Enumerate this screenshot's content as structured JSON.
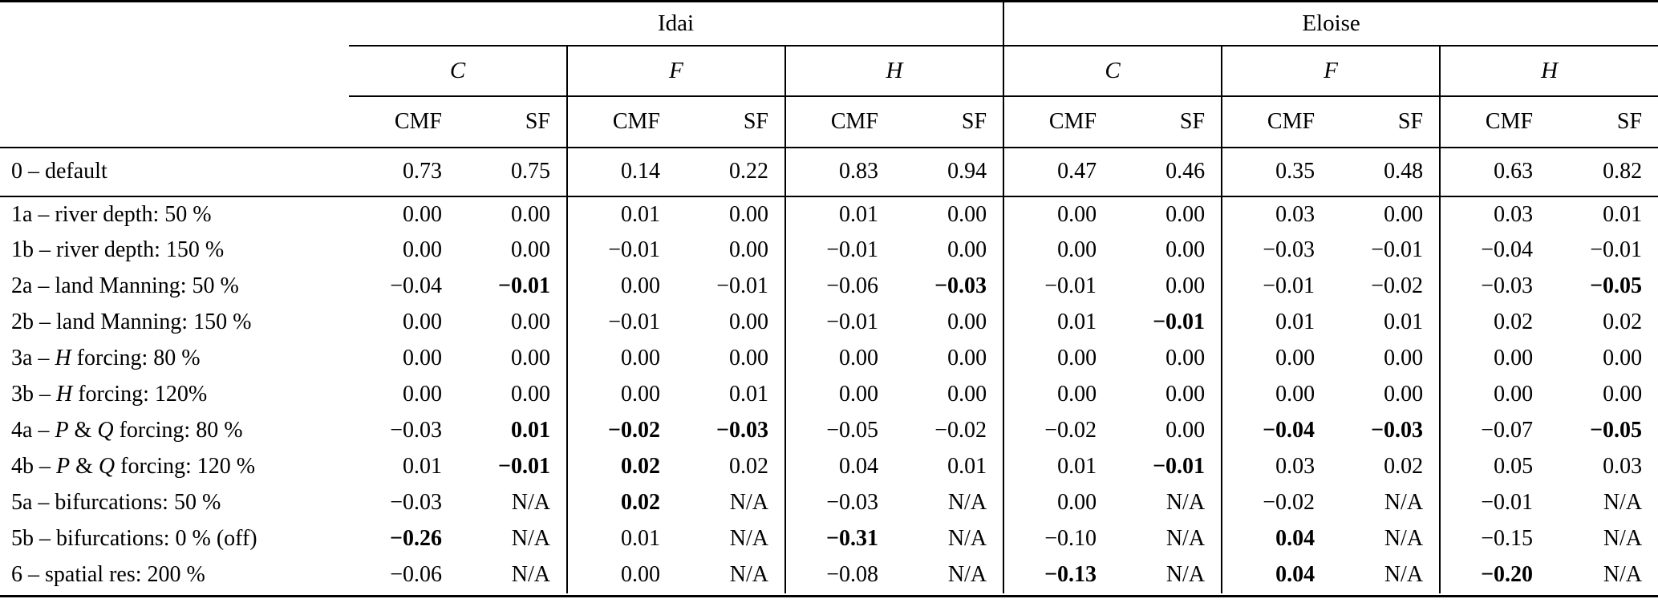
{
  "page": {
    "background": "#ffffff",
    "text_color": "#000000",
    "rule_color": "#000000"
  },
  "table": {
    "group_headers": [
      {
        "label": "Idai",
        "span": 6
      },
      {
        "label": "Eloise",
        "span": 6
      }
    ],
    "variable_headers": [
      {
        "label": "C"
      },
      {
        "label": "F"
      },
      {
        "label": "H"
      },
      {
        "label": "C"
      },
      {
        "label": "F"
      },
      {
        "label": "H"
      }
    ],
    "metric_headers": [
      "CMF",
      "SF",
      "CMF",
      "SF",
      "CMF",
      "SF",
      "CMF",
      "SF",
      "CMF",
      "SF",
      "CMF",
      "SF"
    ],
    "default_row": {
      "label": [
        {
          "t": "0 – default"
        }
      ],
      "values": [
        {
          "v": "0.73",
          "b": 0
        },
        {
          "v": "0.75",
          "b": 0
        },
        {
          "v": "0.14",
          "b": 0
        },
        {
          "v": "0.22",
          "b": 0
        },
        {
          "v": "0.83",
          "b": 0
        },
        {
          "v": "0.94",
          "b": 0
        },
        {
          "v": "0.47",
          "b": 0
        },
        {
          "v": "0.46",
          "b": 0
        },
        {
          "v": "0.35",
          "b": 0
        },
        {
          "v": "0.48",
          "b": 0
        },
        {
          "v": "0.63",
          "b": 0
        },
        {
          "v": "0.82",
          "b": 0
        }
      ]
    },
    "body_rows": [
      {
        "label": [
          {
            "t": "1a – river depth: 50 %"
          }
        ],
        "values": [
          {
            "v": "0.00",
            "b": 0
          },
          {
            "v": "0.00",
            "b": 0
          },
          {
            "v": "0.01",
            "b": 0
          },
          {
            "v": "0.00",
            "b": 0
          },
          {
            "v": "0.01",
            "b": 0
          },
          {
            "v": "0.00",
            "b": 0
          },
          {
            "v": "0.00",
            "b": 0
          },
          {
            "v": "0.00",
            "b": 0
          },
          {
            "v": "0.03",
            "b": 0
          },
          {
            "v": "0.00",
            "b": 0
          },
          {
            "v": "0.03",
            "b": 0
          },
          {
            "v": "0.01",
            "b": 0
          }
        ]
      },
      {
        "label": [
          {
            "t": "1b – river depth: 150 %"
          }
        ],
        "values": [
          {
            "v": "0.00",
            "b": 0
          },
          {
            "v": "0.00",
            "b": 0
          },
          {
            "v": "−0.01",
            "b": 0
          },
          {
            "v": "0.00",
            "b": 0
          },
          {
            "v": "−0.01",
            "b": 0
          },
          {
            "v": "0.00",
            "b": 0
          },
          {
            "v": "0.00",
            "b": 0
          },
          {
            "v": "0.00",
            "b": 0
          },
          {
            "v": "−0.03",
            "b": 0
          },
          {
            "v": "−0.01",
            "b": 0
          },
          {
            "v": "−0.04",
            "b": 0
          },
          {
            "v": "−0.01",
            "b": 0
          }
        ]
      },
      {
        "label": [
          {
            "t": "2a – land Manning: 50 %"
          }
        ],
        "values": [
          {
            "v": "−0.04",
            "b": 0
          },
          {
            "v": "−0.01",
            "b": 1
          },
          {
            "v": "0.00",
            "b": 0
          },
          {
            "v": "−0.01",
            "b": 0
          },
          {
            "v": "−0.06",
            "b": 0
          },
          {
            "v": "−0.03",
            "b": 1
          },
          {
            "v": "−0.01",
            "b": 0
          },
          {
            "v": "0.00",
            "b": 0
          },
          {
            "v": "−0.01",
            "b": 0
          },
          {
            "v": "−0.02",
            "b": 0
          },
          {
            "v": "−0.03",
            "b": 0
          },
          {
            "v": "−0.05",
            "b": 1
          }
        ]
      },
      {
        "label": [
          {
            "t": "2b – land Manning: 150 %"
          }
        ],
        "values": [
          {
            "v": "0.00",
            "b": 0
          },
          {
            "v": "0.00",
            "b": 0
          },
          {
            "v": "−0.01",
            "b": 0
          },
          {
            "v": "0.00",
            "b": 0
          },
          {
            "v": "−0.01",
            "b": 0
          },
          {
            "v": "0.00",
            "b": 0
          },
          {
            "v": "0.01",
            "b": 0
          },
          {
            "v": "−0.01",
            "b": 1
          },
          {
            "v": "0.01",
            "b": 0
          },
          {
            "v": "0.01",
            "b": 0
          },
          {
            "v": "0.02",
            "b": 0
          },
          {
            "v": "0.02",
            "b": 0
          }
        ]
      },
      {
        "label": [
          {
            "t": "3a – "
          },
          {
            "t": "H",
            "i": 1
          },
          {
            "t": " forcing: 80 %"
          }
        ],
        "values": [
          {
            "v": "0.00",
            "b": 0
          },
          {
            "v": "0.00",
            "b": 0
          },
          {
            "v": "0.00",
            "b": 0
          },
          {
            "v": "0.00",
            "b": 0
          },
          {
            "v": "0.00",
            "b": 0
          },
          {
            "v": "0.00",
            "b": 0
          },
          {
            "v": "0.00",
            "b": 0
          },
          {
            "v": "0.00",
            "b": 0
          },
          {
            "v": "0.00",
            "b": 0
          },
          {
            "v": "0.00",
            "b": 0
          },
          {
            "v": "0.00",
            "b": 0
          },
          {
            "v": "0.00",
            "b": 0
          }
        ]
      },
      {
        "label": [
          {
            "t": "3b – "
          },
          {
            "t": "H",
            "i": 1
          },
          {
            "t": " forcing: 120%"
          }
        ],
        "values": [
          {
            "v": "0.00",
            "b": 0
          },
          {
            "v": "0.00",
            "b": 0
          },
          {
            "v": "0.00",
            "b": 0
          },
          {
            "v": "0.01",
            "b": 0
          },
          {
            "v": "0.00",
            "b": 0
          },
          {
            "v": "0.00",
            "b": 0
          },
          {
            "v": "0.00",
            "b": 0
          },
          {
            "v": "0.00",
            "b": 0
          },
          {
            "v": "0.00",
            "b": 0
          },
          {
            "v": "0.00",
            "b": 0
          },
          {
            "v": "0.00",
            "b": 0
          },
          {
            "v": "0.00",
            "b": 0
          }
        ]
      },
      {
        "label": [
          {
            "t": "4a – "
          },
          {
            "t": "P",
            "i": 1
          },
          {
            "t": " & "
          },
          {
            "t": "Q",
            "i": 1
          },
          {
            "t": " forcing: 80 %"
          }
        ],
        "values": [
          {
            "v": "−0.03",
            "b": 0
          },
          {
            "v": "0.01",
            "b": 1
          },
          {
            "v": "−0.02",
            "b": 1
          },
          {
            "v": "−0.03",
            "b": 1
          },
          {
            "v": "−0.05",
            "b": 0
          },
          {
            "v": "−0.02",
            "b": 0
          },
          {
            "v": "−0.02",
            "b": 0
          },
          {
            "v": "0.00",
            "b": 0
          },
          {
            "v": "−0.04",
            "b": 1
          },
          {
            "v": "−0.03",
            "b": 1
          },
          {
            "v": "−0.07",
            "b": 0
          },
          {
            "v": "−0.05",
            "b": 1
          }
        ]
      },
      {
        "label": [
          {
            "t": "4b – "
          },
          {
            "t": "P",
            "i": 1
          },
          {
            "t": " & "
          },
          {
            "t": "Q",
            "i": 1
          },
          {
            "t": " forcing: 120 %"
          }
        ],
        "values": [
          {
            "v": "0.01",
            "b": 0
          },
          {
            "v": "−0.01",
            "b": 1
          },
          {
            "v": "0.02",
            "b": 1
          },
          {
            "v": "0.02",
            "b": 0
          },
          {
            "v": "0.04",
            "b": 0
          },
          {
            "v": "0.01",
            "b": 0
          },
          {
            "v": "0.01",
            "b": 0
          },
          {
            "v": "−0.01",
            "b": 1
          },
          {
            "v": "0.03",
            "b": 0
          },
          {
            "v": "0.02",
            "b": 0
          },
          {
            "v": "0.05",
            "b": 0
          },
          {
            "v": "0.03",
            "b": 0
          }
        ]
      },
      {
        "label": [
          {
            "t": "5a – bifurcations: 50 %"
          }
        ],
        "values": [
          {
            "v": "−0.03",
            "b": 0
          },
          {
            "v": "N/A",
            "b": 0
          },
          {
            "v": "0.02",
            "b": 1
          },
          {
            "v": "N/A",
            "b": 0
          },
          {
            "v": "−0.03",
            "b": 0
          },
          {
            "v": "N/A",
            "b": 0
          },
          {
            "v": "0.00",
            "b": 0
          },
          {
            "v": "N/A",
            "b": 0
          },
          {
            "v": "−0.02",
            "b": 0
          },
          {
            "v": "N/A",
            "b": 0
          },
          {
            "v": "−0.01",
            "b": 0
          },
          {
            "v": "N/A",
            "b": 0
          }
        ]
      },
      {
        "label": [
          {
            "t": "5b – bifurcations: 0 % (off)"
          }
        ],
        "values": [
          {
            "v": "−0.26",
            "b": 1
          },
          {
            "v": "N/A",
            "b": 0
          },
          {
            "v": "0.01",
            "b": 0
          },
          {
            "v": "N/A",
            "b": 0
          },
          {
            "v": "−0.31",
            "b": 1
          },
          {
            "v": "N/A",
            "b": 0
          },
          {
            "v": "−0.10",
            "b": 0
          },
          {
            "v": "N/A",
            "b": 0
          },
          {
            "v": "0.04",
            "b": 1
          },
          {
            "v": "N/A",
            "b": 0
          },
          {
            "v": "−0.15",
            "b": 0
          },
          {
            "v": "N/A",
            "b": 0
          }
        ]
      },
      {
        "label": [
          {
            "t": "6 – spatial res: 200 %"
          }
        ],
        "values": [
          {
            "v": "−0.06",
            "b": 0
          },
          {
            "v": "N/A",
            "b": 0
          },
          {
            "v": "0.00",
            "b": 0
          },
          {
            "v": "N/A",
            "b": 0
          },
          {
            "v": "−0.08",
            "b": 0
          },
          {
            "v": "N/A",
            "b": 0
          },
          {
            "v": "−0.13",
            "b": 1
          },
          {
            "v": "N/A",
            "b": 0
          },
          {
            "v": "0.04",
            "b": 1
          },
          {
            "v": "N/A",
            "b": 0
          },
          {
            "v": "−0.20",
            "b": 1
          },
          {
            "v": "N/A",
            "b": 0
          }
        ]
      }
    ]
  }
}
